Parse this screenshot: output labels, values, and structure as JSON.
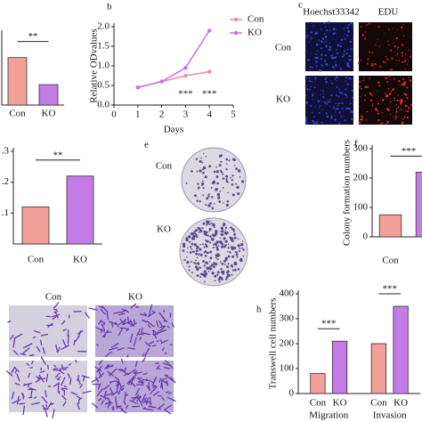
{
  "chart_data": [
    {
      "type": "bar",
      "categories": [
        "Con",
        "KO"
      ],
      "values": [
        1.0,
        0.43
      ],
      "colors": [
        "#f4a09a",
        "#c47be8"
      ],
      "ylim": [
        0,
        1.5
      ],
      "significance": "**"
    },
    {
      "type": "line",
      "label": "b",
      "x": [
        1,
        2,
        3,
        4
      ],
      "xlabel": "Days",
      "ylabel": "Relative ODvalues",
      "series": [
        {
          "name": "Con",
          "color": "#f08aa8",
          "values": [
            0.45,
            0.6,
            0.75,
            0.85
          ]
        },
        {
          "name": "KO",
          "color": "#c86ee8",
          "values": [
            0.45,
            0.6,
            0.95,
            1.9
          ]
        }
      ],
      "xlim": [
        0,
        5
      ],
      "xticks": [
        0,
        1,
        2,
        3,
        4,
        5
      ],
      "ylim": [
        0,
        2
      ],
      "yticks": [
        {
          "value": 0,
          "label": "0.0"
        },
        {
          "value": 0.5,
          "label": "0.5"
        },
        {
          "value": 1,
          "label": "1.0"
        },
        {
          "value": 1.5,
          "label": "1.5"
        },
        {
          "value": 2,
          "label": "2.0"
        }
      ],
      "annotations": [
        "***",
        "***"
      ]
    },
    {
      "type": "bar",
      "categories": [
        "Con",
        "KO"
      ],
      "values": [
        0.12,
        0.22
      ],
      "colors": [
        "#f4a09a",
        "#c47be8"
      ],
      "ylim": [
        0,
        0.3
      ],
      "yticks": [
        {
          "value": 0.1,
          "label": ".1"
        },
        {
          "value": 0.2,
          "label": ".2"
        },
        {
          "value": 0.3,
          "label": ".3"
        }
      ],
      "significance": "**"
    },
    {
      "type": "bar",
      "label": "f",
      "ylabel": "Colony formation numbers",
      "categories": [
        "Con",
        null
      ],
      "values": [
        75,
        220
      ],
      "colors": [
        "#f4a09a",
        "#c47be8"
      ],
      "ylim": [
        0,
        300
      ],
      "yticks": [
        0,
        100,
        200,
        300
      ],
      "significance": "***"
    },
    {
      "type": "grouped-bar",
      "label": "h",
      "ylabel": "Transwell cell numbers",
      "categories": [
        "Migration",
        "Invasion"
      ],
      "series": [
        {
          "name": "Con",
          "color": "#f4a09a",
          "values": [
            80,
            200
          ]
        },
        {
          "name": "KO",
          "color": "#c47be8",
          "values": [
            210,
            350
          ]
        }
      ],
      "ylim": [
        0,
        400
      ],
      "yticks": [
        0,
        100,
        200,
        300,
        400
      ],
      "significance": [
        "***",
        "***"
      ]
    }
  ],
  "panel_c": {
    "label": "c",
    "columns": [
      "Hoechst33342",
      "EDU"
    ],
    "rows": [
      "Con",
      "KO"
    ]
  },
  "panel_e": {
    "label": "e",
    "rows": [
      "Con",
      "KO"
    ]
  },
  "panel_g": {
    "columns": [
      "Con",
      "KO"
    ]
  }
}
